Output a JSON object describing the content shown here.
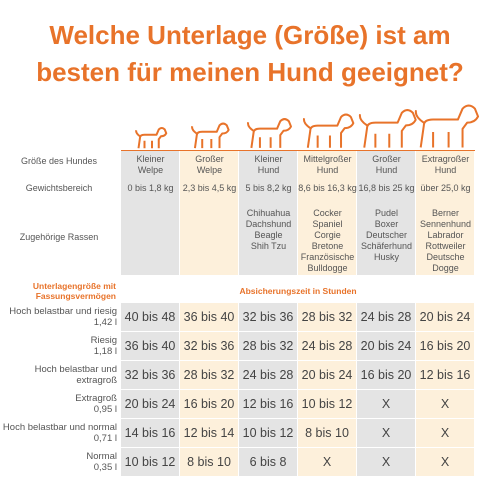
{
  "title": [
    "Welche Unterlage (Größe) ist am",
    "besten für meinen Hund geeignet?"
  ],
  "header_labels": {
    "size": "Größe des Hundes",
    "weight": "Gewichtsbereich",
    "breeds": "Zugehörige Rassen"
  },
  "columns": [
    {
      "size": "Kleiner Welpe",
      "weight": "0 bis 1,8 kg"
    },
    {
      "size": "Großer Welpe",
      "weight": "2,3 bis 4,5 kg"
    },
    {
      "size": "Kleiner Hund",
      "weight": "5 bis 8,2 kg",
      "breeds": [
        "Chihuahua",
        "Dachshund",
        "Beagle",
        "Shih Tzu"
      ]
    },
    {
      "size": "Mittelgroßer Hund",
      "weight": "8,6 bis 16,3 kg",
      "breeds": [
        "Cocker Spaniel",
        "Corgie",
        "Bretone",
        "Französische Bulldogge"
      ]
    },
    {
      "size": "Großer Hund",
      "weight": "16,8 bis 25 kg",
      "breeds": [
        "Pudel",
        "Boxer",
        "Deutscher Schäferhund",
        "Husky"
      ]
    },
    {
      "size": "Extragroßer Hund",
      "weight": "über 25,0 kg",
      "breeds": [
        "Berner Sennenhund",
        "Labrador",
        "Rottweiler",
        "Deutsche Dogge"
      ]
    }
  ],
  "table_header": {
    "row_label": "Unterlagengröße mit Fassungsvermögen",
    "values": "Absicherungszeit in Stunden"
  },
  "rows": [
    {
      "label": "Hoch belastbar und riesig",
      "volume": "1,42 l",
      "values": [
        "40 bis 48",
        "36 bis 40",
        "32 bis 36",
        "28 bis 32",
        "24 bis 28",
        "20 bis 24"
      ]
    },
    {
      "label": "Riesig",
      "volume": "1,18 l",
      "values": [
        "36 bis 40",
        "32 bis 36",
        "28 bis 32",
        "24 bis 28",
        "20 bis 24",
        "16 bis 20"
      ]
    },
    {
      "label": "Hoch belastbar und extragroß",
      "values": [
        "32 bis 36",
        "28 bis 32",
        "24 bis 28",
        "20 bis 24",
        "16 bis 20",
        "12 bis 16"
      ]
    },
    {
      "label": "Extragroß",
      "volume": "0,95 l",
      "values": [
        "20 bis 24",
        "16 bis 20",
        "12 bis 16",
        "10 bis 12",
        "X",
        "X"
      ]
    },
    {
      "label": "Hoch belastbar und normal",
      "volume": "0,71 l",
      "values": [
        "14 bis 16",
        "12 bis 14",
        "10 bis 12",
        "8 bis 10",
        "X",
        "X"
      ]
    },
    {
      "label": "Normal",
      "volume": "0,35 l",
      "values": [
        "10 bis 12",
        "8 bis 10",
        "6 bis 8",
        "X",
        "X",
        "X"
      ]
    }
  ]
}
